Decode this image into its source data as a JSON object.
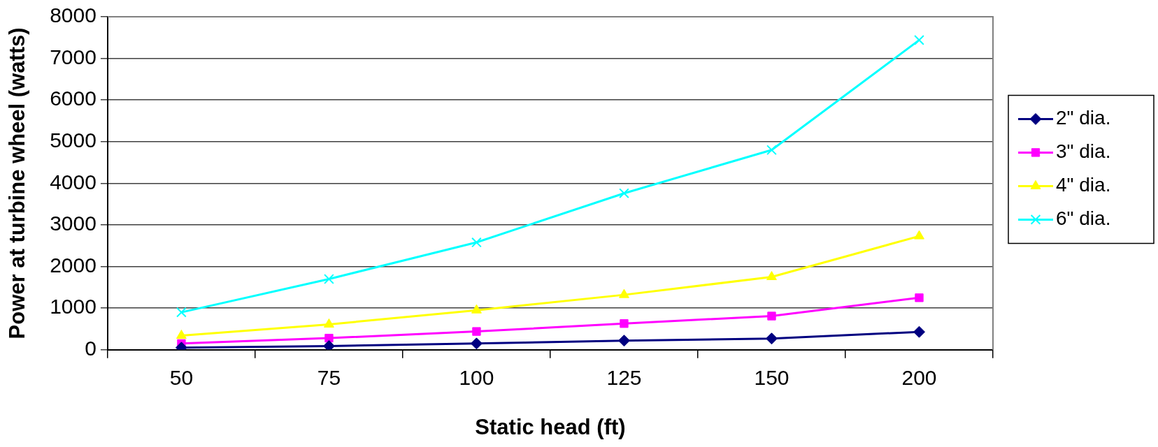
{
  "chart_data": {
    "type": "line",
    "xlabel": "Static head (ft)",
    "ylabel": "Power at turbine wheel (watts)",
    "categories": [
      "50",
      "75",
      "100",
      "125",
      "150",
      "200"
    ],
    "series": [
      {
        "name": "2\" dia.",
        "color": "#000080",
        "marker": "diamond",
        "values": [
          50,
          90,
          150,
          220,
          270,
          430
        ]
      },
      {
        "name": "3\" dia.",
        "color": "#ff00ff",
        "marker": "square",
        "values": [
          150,
          280,
          440,
          630,
          810,
          1250
        ]
      },
      {
        "name": "4\" dia.",
        "color": "#ffff00",
        "marker": "triangle",
        "values": [
          340,
          610,
          950,
          1320,
          1750,
          2730
        ]
      },
      {
        "name": "6\" dia.",
        "color": "#00ffff",
        "marker": "cross",
        "values": [
          900,
          1700,
          2580,
          3760,
          4800,
          7440
        ]
      }
    ],
    "ylim": [
      0,
      8000
    ],
    "yticks": [
      0,
      1000,
      2000,
      3000,
      4000,
      5000,
      6000,
      7000,
      8000
    ],
    "grid": "y",
    "legend": "right",
    "line_style": "solid"
  }
}
